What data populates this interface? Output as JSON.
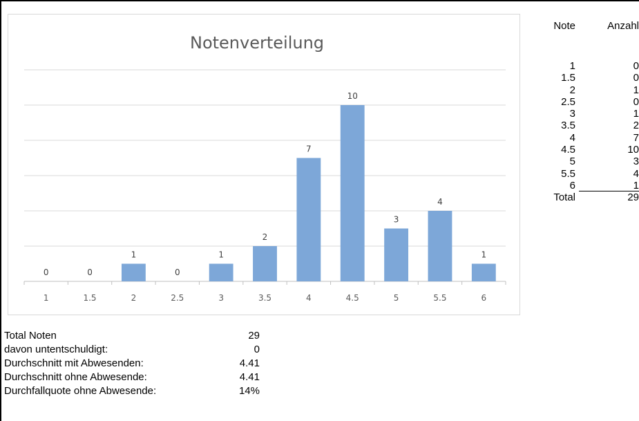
{
  "chart_data": {
    "type": "bar",
    "title": "Notenverteilung",
    "categories": [
      "1",
      "1.5",
      "2",
      "2.5",
      "3",
      "3.5",
      "4",
      "4.5",
      "5",
      "5.5",
      "6"
    ],
    "values": [
      0,
      0,
      1,
      0,
      1,
      2,
      7,
      10,
      3,
      4,
      1
    ],
    "ylim": [
      0,
      12
    ],
    "grid": true,
    "bar_color": "#7da7d8",
    "data_labels": true
  },
  "table": {
    "header_note": "Note",
    "header_count": "Anzahl",
    "rows": [
      {
        "note": "1",
        "count": "0"
      },
      {
        "note": "1.5",
        "count": "0"
      },
      {
        "note": "2",
        "count": "1"
      },
      {
        "note": "2.5",
        "count": "0"
      },
      {
        "note": "3",
        "count": "1"
      },
      {
        "note": "3.5",
        "count": "2"
      },
      {
        "note": "4",
        "count": "7"
      },
      {
        "note": "4.5",
        "count": "10"
      },
      {
        "note": "5",
        "count": "3"
      },
      {
        "note": "5.5",
        "count": "4"
      },
      {
        "note": "6",
        "count": "1"
      }
    ],
    "total_label": "Total",
    "total_value": "29"
  },
  "summary": [
    {
      "label": "Total Noten",
      "value": "29"
    },
    {
      "label": "davon untentschuldigt:",
      "value": "0"
    },
    {
      "label": "Durchschnitt mit Abwesenden:",
      "value": "4.41"
    },
    {
      "label": "Durchschnitt ohne Abwesende:",
      "value": "4.41"
    },
    {
      "label": "Durchfallquote ohne Abwesende:",
      "value": "14%"
    }
  ]
}
